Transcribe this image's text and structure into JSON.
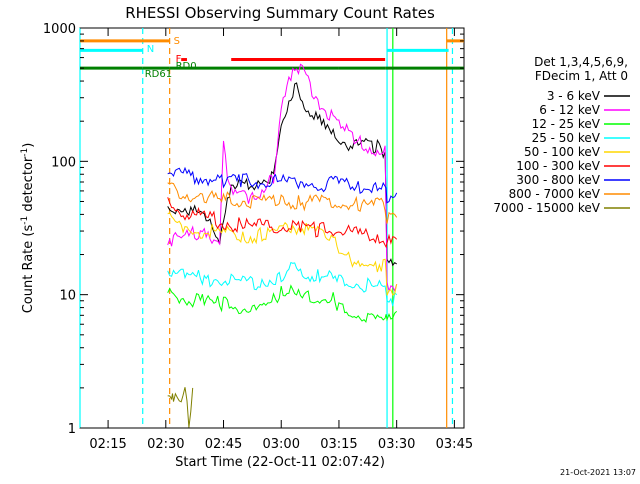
{
  "chart_data": {
    "type": "line",
    "title": "RHESSI Observing Summary Count Rates",
    "xlabel": "Start Time (22-Oct-11 02:07:42)",
    "ylabel_main": "Count Rate (s",
    "ylabel_sup": "-1",
    "ylabel_mid": " detector",
    "ylabel_end": ")",
    "y_scale": "log",
    "ylim": [
      1,
      1000
    ],
    "xlim": [
      "02:07:42",
      "03:47:30"
    ],
    "x_ticks": [
      "02:15",
      "02:30",
      "02:45",
      "03:00",
      "03:15",
      "03:30",
      "03:45"
    ],
    "y_ticks": [
      "1",
      "10",
      "100",
      "1000"
    ],
    "legend_header": [
      "Det 1,3,4,5,6,9,",
      "FDecim 1, Att 0"
    ],
    "timestamp": "21-Oct-2021 13:07",
    "series": [
      {
        "name": "3 - 6 keV",
        "color": "#000000",
        "x": [
          "02:30:30",
          "02:35:00",
          "02:40:00",
          "02:44:00",
          "02:46:00",
          "02:50:00",
          "02:55:00",
          "02:58:00",
          "03:00:00",
          "03:02:00",
          "03:03:30",
          "03:05:00",
          "03:08:00",
          "03:12:00",
          "03:16:00",
          "03:20:00",
          "03:25:00",
          "03:27:00",
          "03:27:30",
          "03:30:00"
        ],
        "y": [
          48,
          48,
          40,
          28,
          60,
          72,
          78,
          80,
          180,
          320,
          390,
          330,
          240,
          180,
          150,
          142,
          135,
          130,
          18,
          17
        ]
      },
      {
        "name": "6 - 12 keV",
        "color": "#ff00ff",
        "x": [
          "02:30:30",
          "02:35:00",
          "02:40:00",
          "02:44:00",
          "02:45:00",
          "02:46:00",
          "02:48:00",
          "02:52:00",
          "02:58:00",
          "03:00:00",
          "03:03:00",
          "03:04:00",
          "03:06:00",
          "03:10:00",
          "03:15:00",
          "03:20:00",
          "03:25:00",
          "03:27:00",
          "03:27:30",
          "03:30:00"
        ],
        "y": [
          28,
          28,
          34,
          26,
          140,
          82,
          60,
          55,
          80,
          250,
          540,
          590,
          460,
          300,
          195,
          152,
          130,
          125,
          13,
          12
        ]
      },
      {
        "name": "12 - 25 keV",
        "color": "#00ff00",
        "x": [
          "02:30:30",
          "02:35:00",
          "02:40:00",
          "02:45:00",
          "02:50:00",
          "02:55:00",
          "03:00:00",
          "03:03:00",
          "03:05:00",
          "03:10:00",
          "03:14:00",
          "03:15:00",
          "03:20:00",
          "03:25:00",
          "03:27:00",
          "03:27:30",
          "03:30:00"
        ],
        "y": [
          11,
          10,
          9.5,
          9,
          8.5,
          8,
          11,
          13,
          10,
          10,
          10,
          8.5,
          7.5,
          7,
          6.5,
          8,
          7.5
        ]
      },
      {
        "name": "25 - 50 keV",
        "color": "#00ffff",
        "x": [
          "02:30:30",
          "02:35:00",
          "02:40:00",
          "02:45:00",
          "02:50:00",
          "02:55:00",
          "03:00:00",
          "03:03:00",
          "03:06:00",
          "03:10:00",
          "03:15:00",
          "03:20:00",
          "03:25:00",
          "03:27:00",
          "03:27:30",
          "03:30:00"
        ],
        "y": [
          17,
          15,
          14,
          14,
          13,
          13,
          15,
          17,
          15,
          14.5,
          14,
          13,
          12,
          12,
          10,
          10
        ]
      },
      {
        "name": "50 - 100 keV",
        "color": "#ffd700",
        "x": [
          "02:30:30",
          "02:35:00",
          "02:40:00",
          "02:45:00",
          "02:50:00",
          "02:55:00",
          "03:00:00",
          "03:03:00",
          "03:06:00",
          "03:10:00",
          "03:14:00",
          "03:15:00",
          "03:20:00",
          "03:25:00",
          "03:27:00",
          "03:27:30",
          "03:30:00"
        ],
        "y": [
          40,
          34,
          32,
          31,
          30,
          30,
          33,
          36,
          33,
          32,
          31,
          20,
          19,
          18,
          18,
          12,
          12
        ]
      },
      {
        "name": "100 - 300 keV",
        "color": "#ff0000",
        "x": [
          "02:30:30",
          "02:35:00",
          "02:40:00",
          "02:45:00",
          "02:50:00",
          "02:55:00",
          "03:00:00",
          "03:05:00",
          "03:10:00",
          "03:15:00",
          "03:20:00",
          "03:25:00",
          "03:27:00",
          "03:27:30",
          "03:30:00"
        ],
        "y": [
          52,
          45,
          40,
          38,
          35,
          35,
          35,
          34,
          33,
          32,
          30,
          28,
          27,
          26,
          26
        ]
      },
      {
        "name": "300 - 800 keV",
        "color": "#0000ff",
        "x": [
          "02:30:30",
          "02:35:00",
          "02:40:00",
          "02:45:00",
          "02:50:00",
          "02:55:00",
          "03:00:00",
          "03:05:00",
          "03:10:00",
          "03:15:00",
          "03:20:00",
          "03:25:00",
          "03:27:00",
          "03:27:30",
          "03:30:00"
        ],
        "y": [
          90,
          85,
          80,
          78,
          76,
          75,
          75,
          74,
          73,
          72,
          70,
          68,
          67,
          60,
          58
        ]
      },
      {
        "name": "800 - 7000 keV",
        "color": "#ff8c00",
        "x": [
          "02:30:30",
          "02:35:00",
          "02:40:00",
          "02:45:00",
          "02:50:00",
          "02:55:00",
          "03:00:00",
          "03:05:00",
          "03:10:00",
          "03:15:00",
          "03:20:00",
          "03:25:00",
          "03:27:00",
          "03:27:30",
          "03:30:00"
        ],
        "y": [
          70,
          62,
          57,
          55,
          54,
          53,
          53,
          53,
          52,
          52,
          51,
          50,
          49,
          40,
          38
        ]
      },
      {
        "name": "7000 - 15000 keV",
        "color": "#808000",
        "x": [
          "02:30:30",
          "02:31:30",
          "02:32:00",
          "02:33:00",
          "02:34:00",
          "02:35:00",
          "02:36:00",
          "02:37:00"
        ],
        "y": [
          2,
          2,
          1.5,
          2,
          1.5,
          2,
          1.2,
          2
        ]
      }
    ],
    "annotations": [
      {
        "label": "S",
        "color": "#ff8c00",
        "time": "02:31:00"
      },
      {
        "label": "N",
        "color": "#00ffff",
        "time": "02:24:00"
      },
      {
        "label": "F",
        "color": "#ff0000",
        "time": "02:31:00"
      },
      {
        "label": "RD0",
        "color": "#008000",
        "time": "02:31:30"
      },
      {
        "label": "RD61",
        "color": "#008000",
        "time": "02:24:00"
      }
    ],
    "state_bars": [
      {
        "color": "#ff8c00",
        "y_level": 800,
        "segments": [
          [
            "02:07:42",
            "02:31:00"
          ],
          [
            "03:43:00",
            "03:47:30"
          ]
        ]
      },
      {
        "color": "#00ffff",
        "y_level": 680,
        "segments": [
          [
            "02:07:42",
            "02:24:00"
          ],
          [
            "03:27:30",
            "03:43:30"
          ]
        ]
      },
      {
        "color": "#ff0000",
        "y_level": 580,
        "segments": [
          [
            "02:34:00",
            "02:35:30"
          ],
          [
            "02:47:00",
            "03:27:00"
          ]
        ]
      },
      {
        "color": "#008000",
        "y_level": 500,
        "segments": [
          [
            "02:07:42",
            "02:24:00"
          ],
          [
            "02:24:00",
            "02:31:00"
          ],
          [
            "02:31:00",
            "03:15:00"
          ],
          [
            "03:15:00",
            "03:27:00"
          ],
          [
            "03:27:00",
            "03:47:30"
          ]
        ]
      }
    ],
    "vlines": [
      {
        "time": "02:07:42",
        "color": "#00ffff",
        "style": "solid"
      },
      {
        "time": "02:24:00",
        "color": "#00ffff",
        "style": "dashed"
      },
      {
        "time": "02:31:00",
        "color": "#ff8c00",
        "style": "dashed"
      },
      {
        "time": "03:27:30",
        "color": "#00ffff",
        "style": "solid"
      },
      {
        "time": "03:29:00",
        "color": "#00ff00",
        "style": "solid"
      },
      {
        "time": "03:43:00",
        "color": "#ff8c00",
        "style": "solid"
      },
      {
        "time": "03:44:30",
        "color": "#00ffff",
        "style": "dashed"
      }
    ]
  }
}
